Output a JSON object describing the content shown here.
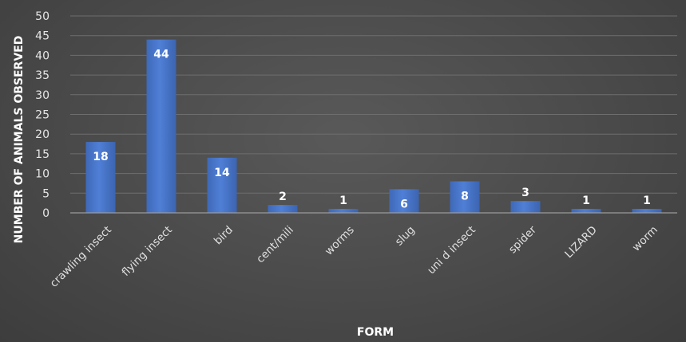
{
  "chart_data": {
    "type": "bar",
    "title": "",
    "xlabel": "FORM",
    "ylabel": "NUMBER OF ANIMALS OBSERVED",
    "categories": [
      "crawling insect",
      "flying insect",
      "bird",
      "cent/mili",
      "worms",
      "slug",
      "uni d insect",
      "spider",
      "LIZARD",
      "worm"
    ],
    "series": [
      {
        "values": [
          18,
          44,
          14,
          2,
          1,
          6,
          8,
          3,
          1,
          1
        ]
      }
    ],
    "data_labels": [
      "18",
      "44",
      "14",
      "2",
      "1",
      "6",
      "8",
      "3",
      "1",
      "1"
    ],
    "y_ticks": [
      "0",
      "5",
      "10",
      "15",
      "20",
      "25",
      "30",
      "35",
      "40",
      "45",
      "50"
    ],
    "ylim": [
      0,
      50
    ],
    "grid": true,
    "legend": "none",
    "colors": {
      "bar": "#4472c4",
      "bar_highlight": "#5a8ae0",
      "background": "#4a4a4a",
      "text": "#ffffff"
    }
  }
}
